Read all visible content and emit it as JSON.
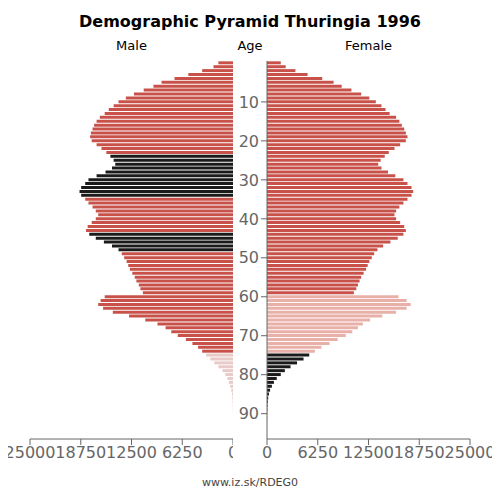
{
  "chart_data": {
    "type": "bar",
    "orientation": "horizontal",
    "title": "Demographic Pyramid Thuringia 1996",
    "ylabel": "Age",
    "annotations": [
      "www.iz.sk/RDEG0"
    ],
    "grid": false,
    "categories": [
      0,
      1,
      2,
      3,
      4,
      5,
      6,
      7,
      8,
      9,
      10,
      11,
      12,
      13,
      14,
      15,
      16,
      17,
      18,
      19,
      20,
      21,
      22,
      23,
      24,
      25,
      26,
      27,
      28,
      29,
      30,
      31,
      32,
      33,
      34,
      35,
      36,
      37,
      38,
      39,
      40,
      41,
      42,
      43,
      44,
      45,
      46,
      47,
      48,
      49,
      50,
      51,
      52,
      53,
      54,
      55,
      56,
      57,
      58,
      59,
      60,
      61,
      62,
      63,
      64,
      65,
      66,
      67,
      68,
      69,
      70,
      71,
      72,
      73,
      74,
      75,
      76,
      77,
      78,
      79,
      80,
      81,
      82,
      83,
      84,
      85,
      86,
      87,
      88,
      89,
      90,
      91,
      92,
      93,
      94,
      95
    ],
    "xlim": [
      0,
      25000
    ],
    "xticks": [
      0,
      6250,
      12500,
      18750,
      25000
    ],
    "ylim": [
      -0.5,
      96.5
    ],
    "yticks": [
      10,
      20,
      30,
      40,
      50,
      60,
      70,
      80,
      90
    ],
    "series": [
      {
        "name": "Male",
        "values": [
          1800,
          2400,
          3800,
          5500,
          7200,
          8800,
          9800,
          11000,
          12200,
          13200,
          14100,
          14700,
          15300,
          15800,
          16400,
          16800,
          17100,
          17300,
          17500,
          17600,
          17400,
          16800,
          16200,
          15600,
          15100,
          14700,
          14500,
          14900,
          15700,
          16800,
          17800,
          18200,
          18700,
          18900,
          18700,
          18200,
          17800,
          17300,
          16900,
          16600,
          16900,
          17400,
          17900,
          18100,
          17700,
          16900,
          15900,
          14900,
          14100,
          13700,
          13400,
          13100,
          12900,
          12700,
          12400,
          12100,
          11900,
          11600,
          11400,
          11100,
          15800,
          16300,
          16600,
          16000,
          14800,
          12800,
          10800,
          9300,
          8300,
          7600,
          6800,
          5800,
          5000,
          4300,
          3800,
          3300,
          2800,
          2300,
          1800,
          1300,
          950,
          680,
          500,
          340,
          210,
          130,
          80,
          52,
          35,
          18,
          9,
          6,
          4,
          2,
          1,
          1
        ],
        "colors": [
          "#C8524A",
          "#C8524A",
          "#C8524A",
          "#C8524A",
          "#C8524A",
          "#C8524A",
          "#C8524A",
          "#C8524A",
          "#C8524A",
          "#C8524A",
          "#C8524A",
          "#C8524A",
          "#C8524A",
          "#C8524A",
          "#C8524A",
          "#C8524A",
          "#C8524A",
          "#C8524A",
          "#C8524A",
          "#C8524A",
          "#C8524A",
          "#C8524A",
          "#C8524A",
          "#C8524A",
          "#1A1A1A",
          "#1A1A1A",
          "#1A1A1A",
          "#1A1A1A",
          "#1A1A1A",
          "#1A1A1A",
          "#1A1A1A",
          "#1A1A1A",
          "#1A1A1A",
          "#1A1A1A",
          "#1A1A1A",
          "#C8524A",
          "#C8524A",
          "#C8524A",
          "#C8524A",
          "#C8524A",
          "#C8524A",
          "#C8524A",
          "#C8524A",
          "#C8524A",
          "#1A1A1A",
          "#1A1A1A",
          "#1A1A1A",
          "#1A1A1A",
          "#1A1A1A",
          "#C8524A",
          "#C8524A",
          "#C8524A",
          "#C8524A",
          "#C8524A",
          "#C8524A",
          "#C8524A",
          "#C8524A",
          "#C8524A",
          "#C8524A",
          "#C8524A",
          "#C8524A",
          "#C8524A",
          "#C8524A",
          "#C8524A",
          "#C8524A",
          "#C8524A",
          "#C8524A",
          "#C8524A",
          "#C8524A",
          "#C8524A",
          "#C8524A",
          "#C8524A",
          "#C8524A",
          "#C8524A",
          "#C8524A",
          "#E8CBC8",
          "#E8CBC8",
          "#E8CBC8",
          "#E8CBC8",
          "#E8CBC8",
          "#E8CBC8",
          "#E8CBC8",
          "#E8CBC8",
          "#E8CBC8",
          "#E8CBC8",
          "#E8CBC8",
          "#E8CBC8",
          "#E8CBC8",
          "#E8CBC8",
          "#E8CBC8",
          "#E8CBC8",
          "#E8CBC8",
          "#E8CBC8",
          "#E8CBC8",
          "#E8CBC8",
          "#E8CBC8"
        ]
      },
      {
        "name": "Female",
        "values": [
          1700,
          2300,
          3500,
          5000,
          6800,
          8200,
          9200,
          10400,
          11600,
          12600,
          13400,
          14100,
          14600,
          15100,
          15900,
          16300,
          16600,
          16900,
          17100,
          17300,
          17100,
          16400,
          15700,
          15000,
          14500,
          14000,
          13700,
          14100,
          14900,
          15800,
          16800,
          17300,
          17800,
          18000,
          17800,
          17300,
          16800,
          16300,
          15900,
          15700,
          15900,
          16400,
          16900,
          17100,
          16800,
          16100,
          15200,
          14300,
          13600,
          13200,
          12900,
          12600,
          12400,
          12200,
          11900,
          11600,
          11400,
          11200,
          11000,
          10700,
          16200,
          17200,
          17700,
          17200,
          15900,
          14200,
          12700,
          11800,
          11200,
          10500,
          9700,
          8700,
          7700,
          6700,
          5900,
          5200,
          4500,
          3700,
          2900,
          2200,
          1700,
          1200,
          850,
          600,
          380,
          240,
          148,
          95,
          60,
          35,
          18,
          12,
          8,
          5,
          3,
          1
        ],
        "colors": [
          "#C8524A",
          "#C8524A",
          "#C8524A",
          "#C8524A",
          "#C8524A",
          "#C8524A",
          "#C8524A",
          "#C8524A",
          "#C8524A",
          "#C8524A",
          "#C8524A",
          "#C8524A",
          "#C8524A",
          "#C8524A",
          "#C8524A",
          "#C8524A",
          "#C8524A",
          "#C8524A",
          "#C8524A",
          "#C8524A",
          "#C8524A",
          "#C8524A",
          "#C8524A",
          "#C8524A",
          "#C8524A",
          "#C8524A",
          "#C8524A",
          "#C8524A",
          "#C8524A",
          "#C8524A",
          "#C8524A",
          "#C8524A",
          "#C8524A",
          "#C8524A",
          "#C8524A",
          "#C8524A",
          "#C8524A",
          "#C8524A",
          "#C8524A",
          "#C8524A",
          "#C8524A",
          "#C8524A",
          "#C8524A",
          "#C8524A",
          "#C8524A",
          "#C8524A",
          "#C8524A",
          "#C8524A",
          "#C8524A",
          "#C8524A",
          "#C8524A",
          "#C8524A",
          "#C8524A",
          "#C8524A",
          "#C8524A",
          "#C8524A",
          "#C8524A",
          "#C8524A",
          "#C8524A",
          "#C8524A",
          "#E8B0A8",
          "#E8B0A8",
          "#E8B0A8",
          "#E8B0A8",
          "#E8B0A8",
          "#E8B0A8",
          "#E8B0A8",
          "#E8B0A8",
          "#E8B0A8",
          "#E8B0A8",
          "#E8B0A8",
          "#E8B0A8",
          "#E8B0A8",
          "#E8B0A8",
          "#E8B0A8",
          "#1A1A1A",
          "#1A1A1A",
          "#1A1A1A",
          "#1A1A1A",
          "#1A1A1A",
          "#1A1A1A",
          "#1A1A1A",
          "#1A1A1A",
          "#1A1A1A",
          "#1A1A1A",
          "#1A1A1A",
          "#1A1A1A",
          "#1A1A1A",
          "#1A1A1A",
          "#1A1A1A",
          "#1A1A1A",
          "#1A1A1A",
          "#1A1A1A",
          "#1A1A1A",
          "#1A1A1A",
          "#1A1A1A"
        ]
      }
    ]
  }
}
